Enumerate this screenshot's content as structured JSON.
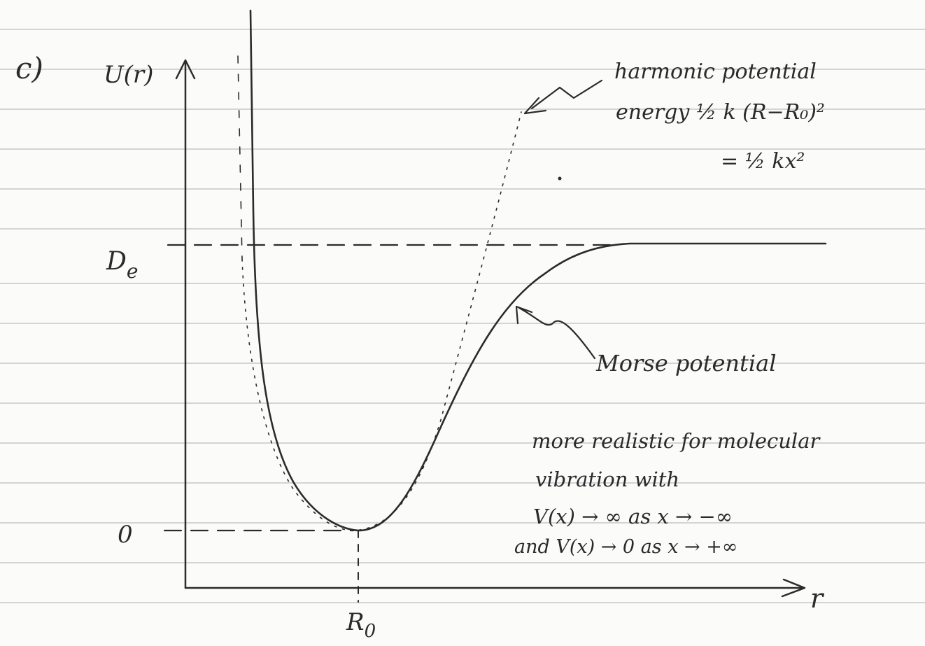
{
  "part": "c)",
  "axes": {
    "y_label": "U(r)",
    "x_label": "r",
    "level_de": {
      "main": "D",
      "sub": "e"
    },
    "level_zero": "0",
    "r0": {
      "main": "R",
      "sub": "0"
    }
  },
  "harmonic": {
    "lines": [
      "harmonic potential",
      "energy ½ k (R−R₀)²",
      "= ½ kx²"
    ]
  },
  "morse": {
    "label": "Morse potential",
    "notes": [
      "more realistic for molecular",
      "vibration with",
      "V(x) → ∞  as  x → −∞",
      "and  V(x) → 0  as  x → +∞"
    ]
  }
}
